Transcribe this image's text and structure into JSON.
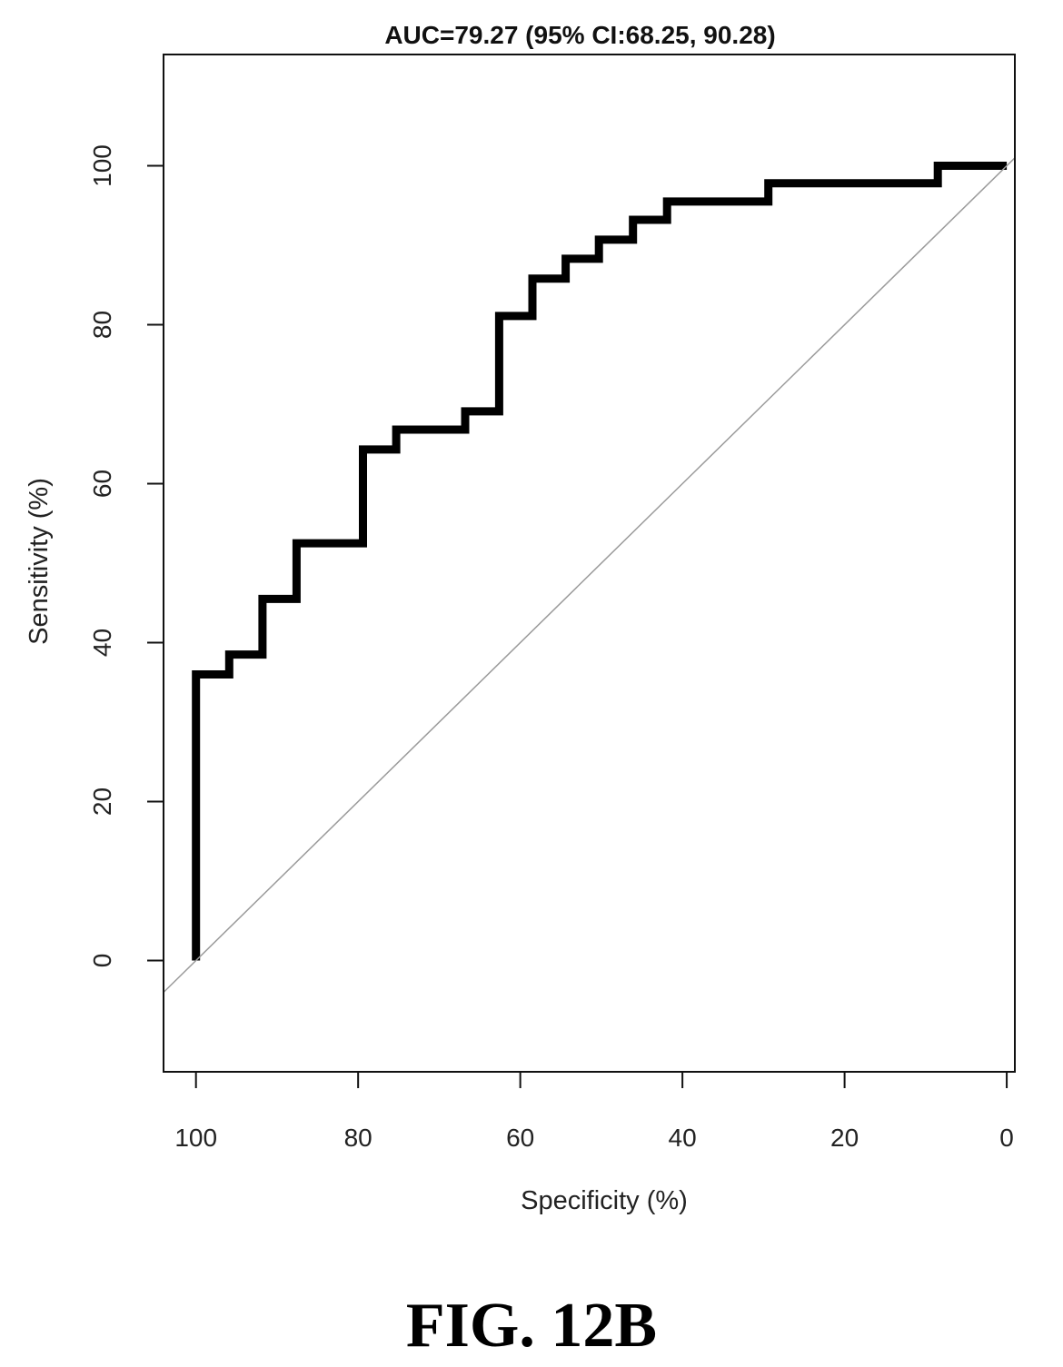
{
  "chart_data": {
    "type": "line",
    "title": "AUC=79.27 (95% CI:68.25, 90.28)",
    "xlabel": "Specificity (%)",
    "ylabel": "Sensitivity (%)",
    "x_reversed": true,
    "xlim": [
      104,
      -1
    ],
    "ylim": [
      -14,
      114
    ],
    "xticks": [
      "100",
      "80",
      "60",
      "40",
      "20",
      "0"
    ],
    "xtick_values": [
      100,
      80,
      60,
      40,
      20,
      0
    ],
    "yticks": [
      "0",
      "20",
      "40",
      "60",
      "80",
      "100"
    ],
    "ytick_values": [
      0,
      20,
      40,
      60,
      80,
      100
    ],
    "grid": false,
    "series": [
      {
        "role": "roc-curve",
        "color": "#000000",
        "points": [
          [
            100,
            0
          ],
          [
            100,
            36
          ],
          [
            95.9,
            36
          ],
          [
            95.9,
            38.5
          ],
          [
            91.8,
            38.5
          ],
          [
            91.8,
            45.5
          ],
          [
            87.6,
            45.5
          ],
          [
            87.6,
            52.5
          ],
          [
            79.4,
            52.5
          ],
          [
            79.4,
            64.3
          ],
          [
            75.3,
            64.3
          ],
          [
            75.3,
            66.8
          ],
          [
            66.8,
            66.8
          ],
          [
            66.8,
            69.1
          ],
          [
            62.6,
            69.1
          ],
          [
            62.6,
            81.1
          ],
          [
            58.5,
            81.1
          ],
          [
            58.5,
            85.8
          ],
          [
            54.4,
            85.8
          ],
          [
            54.4,
            88.3
          ],
          [
            50.3,
            88.3
          ],
          [
            50.3,
            90.7
          ],
          [
            46.1,
            90.7
          ],
          [
            46.1,
            93.2
          ],
          [
            41.9,
            93.2
          ],
          [
            41.9,
            95.5
          ],
          [
            29.4,
            95.5
          ],
          [
            29.4,
            97.8
          ],
          [
            8.5,
            97.8
          ],
          [
            8.5,
            100
          ],
          [
            0,
            100
          ]
        ]
      },
      {
        "role": "reference-diagonal",
        "color": "#9a9a9a",
        "points": [
          [
            104,
            -4
          ],
          [
            -1,
            101
          ]
        ]
      }
    ]
  },
  "figure": {
    "caption": "FIG. 12B"
  }
}
